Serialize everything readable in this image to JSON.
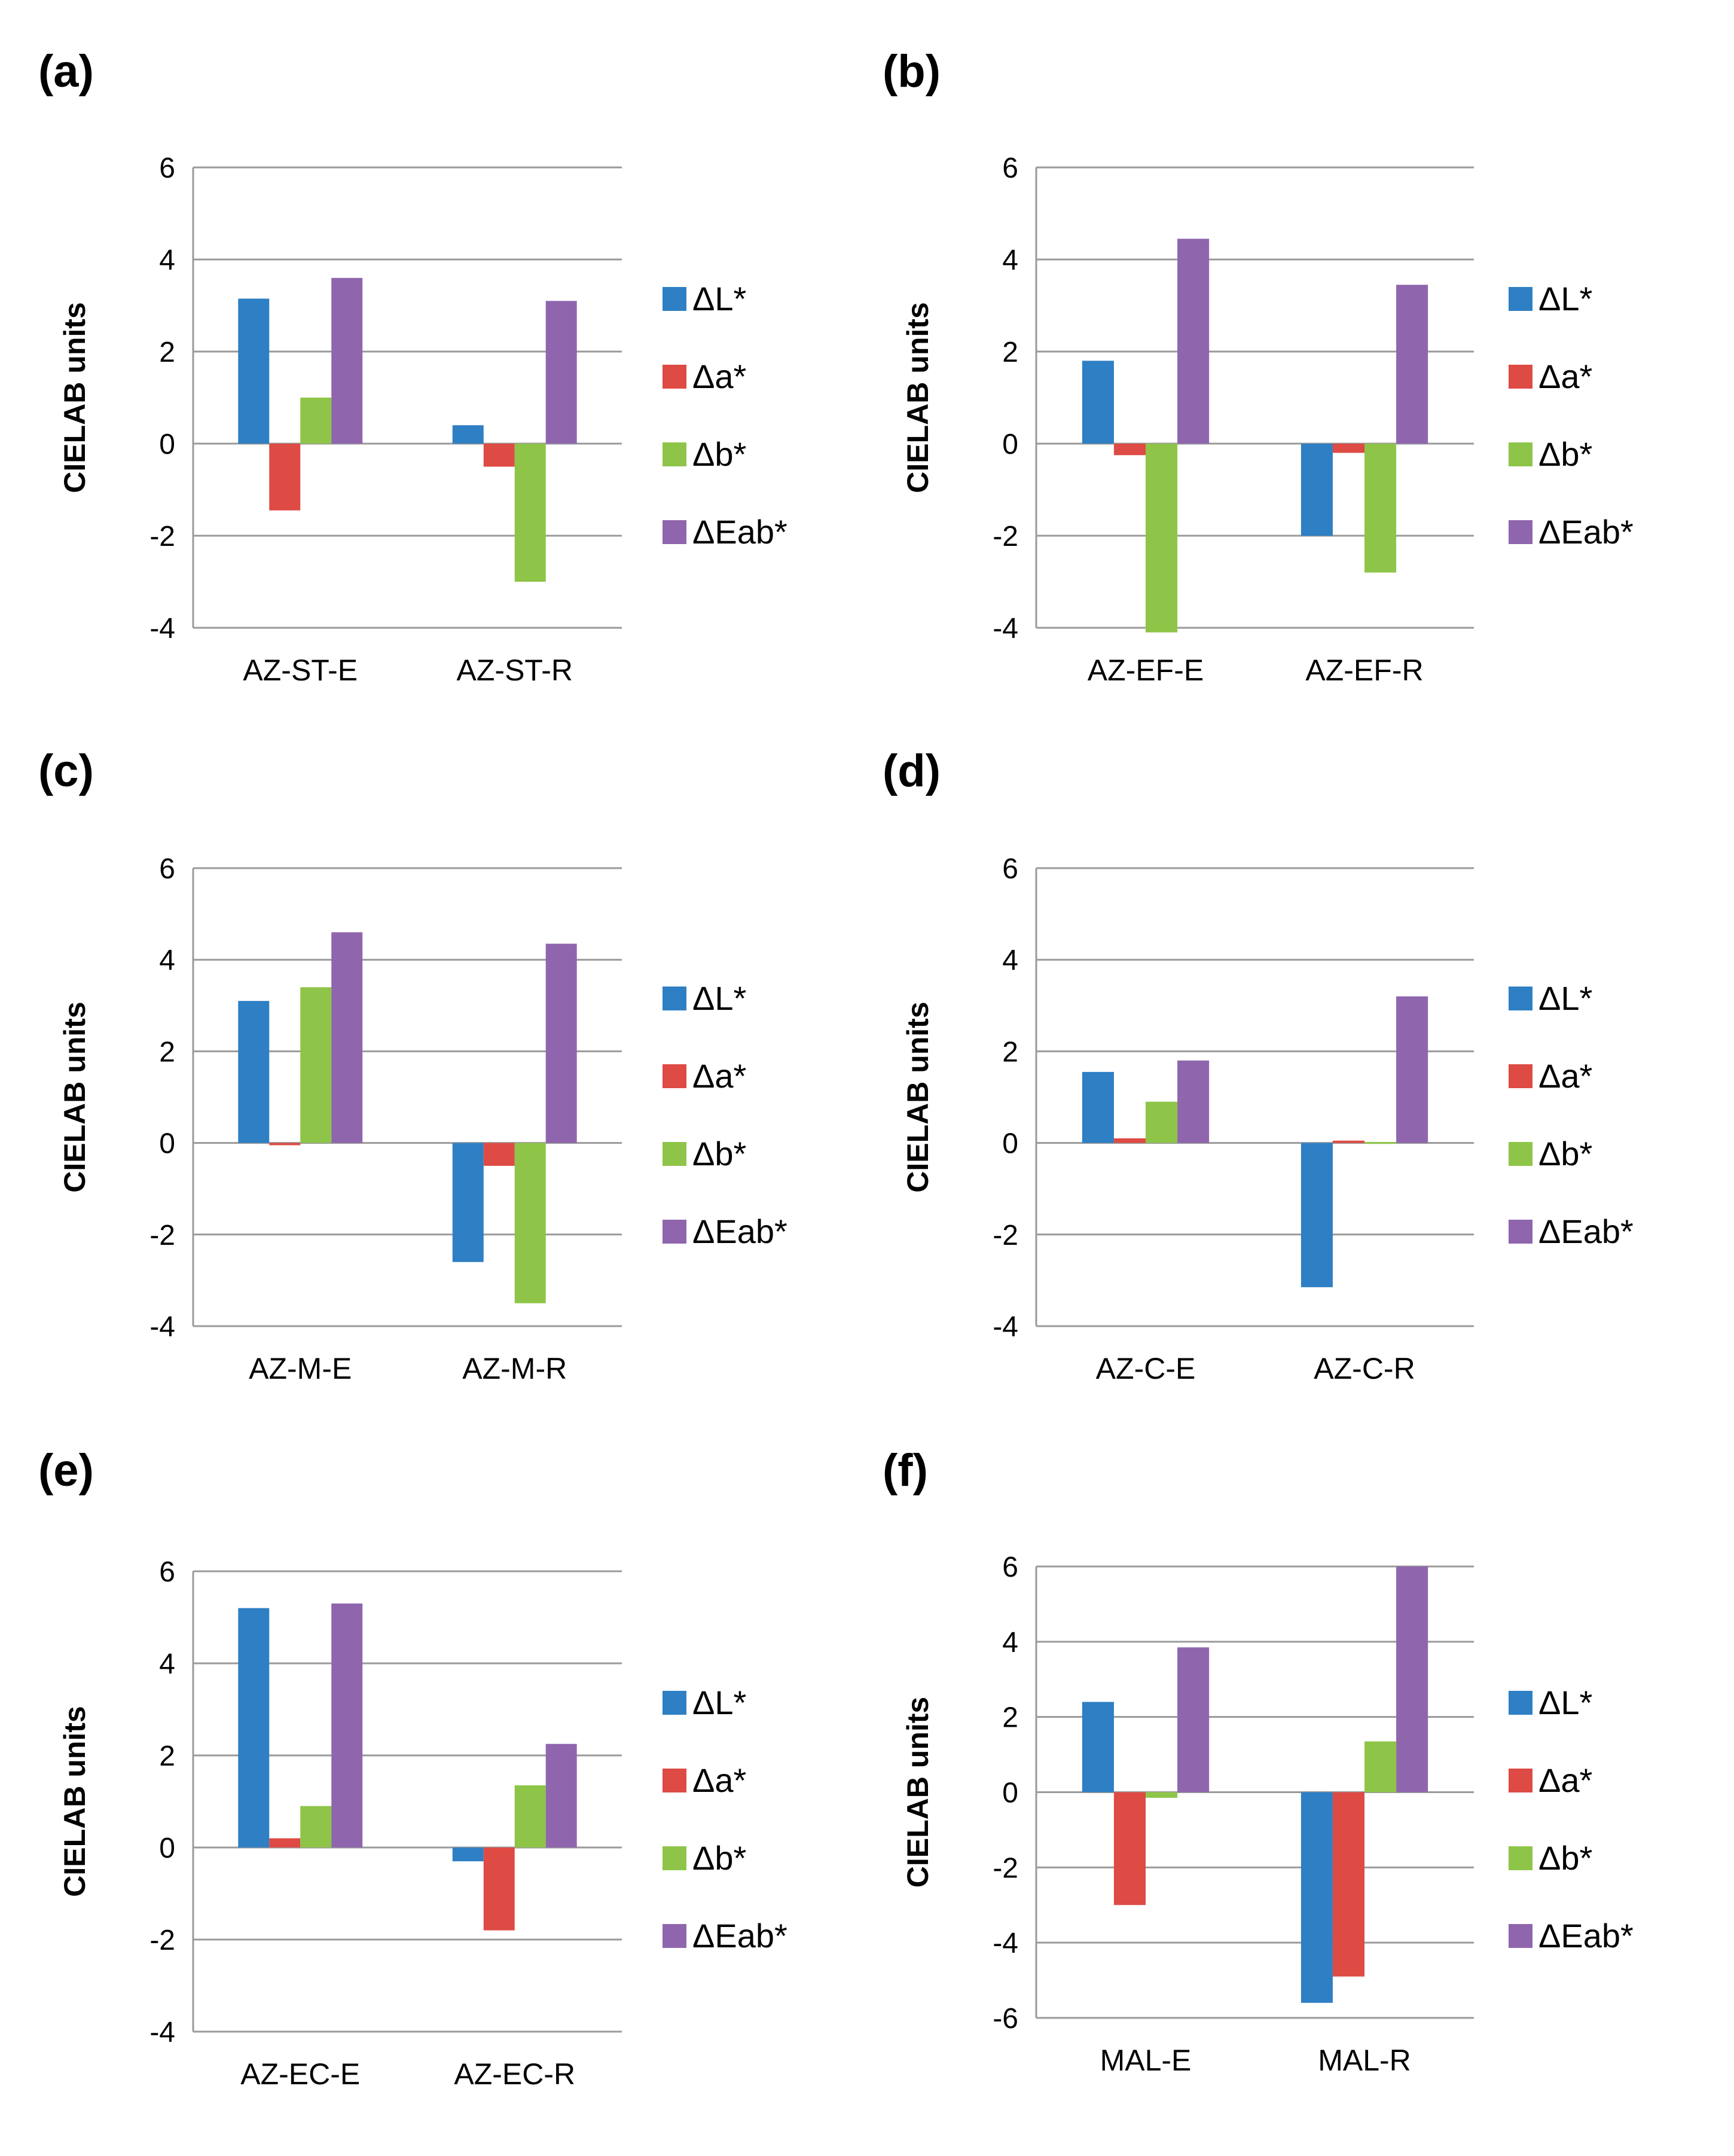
{
  "series_colors": [
    "#2e7fc4",
    "#de4a44",
    "#8ec548",
    "#8f66ad"
  ],
  "chart_data": [
    {
      "type": "bar",
      "panel_label": "(a)",
      "ylabel": "CIELAB units",
      "ylim": [
        -4,
        6
      ],
      "yticks": [
        "6",
        "4",
        "2",
        "0",
        "-2",
        "-4"
      ],
      "categories": [
        "AZ-ST-E",
        "AZ-ST-R"
      ],
      "series": [
        {
          "name": "ΔL*",
          "values": [
            3.15,
            0.4
          ]
        },
        {
          "name": "Δa*",
          "values": [
            -1.45,
            -0.5
          ]
        },
        {
          "name": "Δb*",
          "values": [
            1.0,
            -3.0
          ]
        },
        {
          "name": "ΔEab*",
          "values": [
            3.6,
            3.1
          ]
        }
      ]
    },
    {
      "type": "bar",
      "panel_label": "(b)",
      "ylabel": "CIELAB units",
      "ylim": [
        -4,
        6
      ],
      "yticks": [
        "6",
        "4",
        "2",
        "0",
        "-2",
        "-4"
      ],
      "categories": [
        "AZ-EF-E",
        "AZ-EF-R"
      ],
      "series": [
        {
          "name": "ΔL*",
          "values": [
            1.8,
            -2.0
          ]
        },
        {
          "name": "Δa*",
          "values": [
            -0.25,
            -0.2
          ]
        },
        {
          "name": "Δb*",
          "values": [
            -4.1,
            -2.8
          ]
        },
        {
          "name": "ΔEab*",
          "values": [
            4.45,
            3.45
          ]
        }
      ]
    },
    {
      "type": "bar",
      "panel_label": "(c)",
      "ylabel": "CIELAB units",
      "ylim": [
        -4,
        6
      ],
      "yticks": [
        "6",
        "4",
        "2",
        "0",
        "-2",
        "-4"
      ],
      "categories": [
        "AZ-M-E",
        "AZ-M-R"
      ],
      "series": [
        {
          "name": "ΔL*",
          "values": [
            3.1,
            -2.6
          ]
        },
        {
          "name": "Δa*",
          "values": [
            -0.05,
            -0.5
          ]
        },
        {
          "name": "Δb*",
          "values": [
            3.4,
            -3.5
          ]
        },
        {
          "name": "ΔEab*",
          "values": [
            4.6,
            4.35
          ]
        }
      ]
    },
    {
      "type": "bar",
      "panel_label": "(d)",
      "ylabel": "CIELAB units",
      "ylim": [
        -4,
        6
      ],
      "yticks": [
        "6",
        "4",
        "2",
        "0",
        "-2",
        "-4"
      ],
      "categories": [
        "AZ-C-E",
        "AZ-C-R"
      ],
      "series": [
        {
          "name": "ΔL*",
          "values": [
            1.55,
            -3.15
          ]
        },
        {
          "name": "Δa*",
          "values": [
            0.1,
            0.05
          ]
        },
        {
          "name": "Δb*",
          "values": [
            0.9,
            0.02
          ]
        },
        {
          "name": "ΔEab*",
          "values": [
            1.8,
            3.2
          ]
        }
      ]
    },
    {
      "type": "bar",
      "panel_label": "(e)",
      "ylabel": "CIELAB units",
      "ylim": [
        -4,
        6
      ],
      "yticks": [
        "6",
        "4",
        "2",
        "0",
        "-2",
        "-4"
      ],
      "categories": [
        "AZ-EC-E",
        "AZ-EC-R"
      ],
      "series": [
        {
          "name": "ΔL*",
          "values": [
            5.2,
            -0.3
          ]
        },
        {
          "name": "Δa*",
          "values": [
            0.2,
            -1.8
          ]
        },
        {
          "name": "Δb*",
          "values": [
            0.9,
            1.35
          ]
        },
        {
          "name": "ΔEab*",
          "values": [
            5.3,
            2.25
          ]
        }
      ]
    },
    {
      "type": "bar",
      "panel_label": "(f)",
      "ylabel": "CIELAB units",
      "ylim": [
        -6,
        6
      ],
      "yticks": [
        "6",
        "4",
        "2",
        "0",
        "-2",
        "-4",
        "-6"
      ],
      "categories": [
        "MAL-E",
        "MAL-R"
      ],
      "series": [
        {
          "name": "ΔL*",
          "values": [
            2.4,
            -5.6
          ]
        },
        {
          "name": "Δa*",
          "values": [
            -3.0,
            -4.9
          ]
        },
        {
          "name": "Δb*",
          "values": [
            -0.15,
            1.35
          ]
        },
        {
          "name": "ΔEab*",
          "values": [
            3.85,
            6.0
          ]
        }
      ]
    }
  ]
}
